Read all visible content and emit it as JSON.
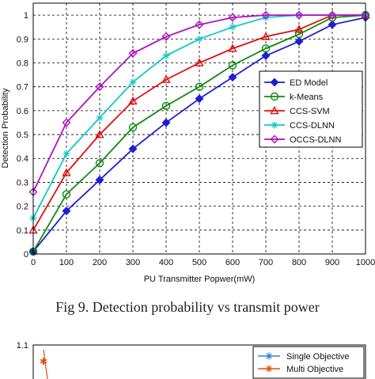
{
  "chart_data": [
    {
      "type": "line",
      "title": "",
      "xlabel": "PU Transmitter Popwer(mW)",
      "ylabel": "Detection Probability",
      "x": [
        0,
        100,
        200,
        300,
        400,
        500,
        600,
        700,
        800,
        900,
        1000
      ],
      "xlim": [
        0,
        1000
      ],
      "ylim": [
        0,
        1.05
      ],
      "xticks": [
        "0",
        "100",
        "200",
        "300",
        "400",
        "500",
        "600",
        "700",
        "800",
        "900",
        "1000"
      ],
      "yticks": [
        "0",
        "0.1",
        "0.2",
        "0.3",
        "0.4",
        "0.5",
        "0.6",
        "0.7",
        "0.8",
        "0.9",
        "1"
      ],
      "grid": true,
      "legend_position": "right",
      "series": [
        {
          "name": "ED Model",
          "color": "#1f1fd0",
          "marker": "diamond-filled",
          "values": [
            0.01,
            0.18,
            0.31,
            0.44,
            0.55,
            0.65,
            0.74,
            0.83,
            0.89,
            0.96,
            0.99
          ]
        },
        {
          "name": "k-Means",
          "color": "#118a11",
          "marker": "circle",
          "values": [
            0.01,
            0.25,
            0.38,
            0.53,
            0.62,
            0.7,
            0.79,
            0.86,
            0.92,
            0.99,
            1.0
          ]
        },
        {
          "name": "CCS-SVM",
          "color": "#e01010",
          "marker": "triangle",
          "values": [
            0.1,
            0.34,
            0.5,
            0.64,
            0.73,
            0.8,
            0.86,
            0.91,
            0.94,
            1.0,
            1.0
          ]
        },
        {
          "name": "CCS-DLNN",
          "color": "#10c8c8",
          "marker": "star",
          "values": [
            0.15,
            0.42,
            0.57,
            0.72,
            0.83,
            0.9,
            0.95,
            0.99,
            1.0,
            1.0,
            1.0
          ]
        },
        {
          "name": "OCCS-DLNN",
          "color": "#b010c0",
          "marker": "diamond",
          "values": [
            0.26,
            0.55,
            0.7,
            0.84,
            0.91,
            0.96,
            0.99,
            1.0,
            1.0,
            1.0,
            1.0
          ]
        }
      ]
    },
    {
      "type": "line",
      "title": "",
      "ytick_top": "1.1",
      "legend_position": "top-right",
      "series": [
        {
          "name": "Single Objective",
          "color": "#3a7fd0",
          "marker": "star"
        },
        {
          "name": "Multi Objective",
          "color": "#e05010",
          "marker": "star"
        }
      ]
    }
  ],
  "caption": "Fig 9. Detection probability vs transmit power"
}
